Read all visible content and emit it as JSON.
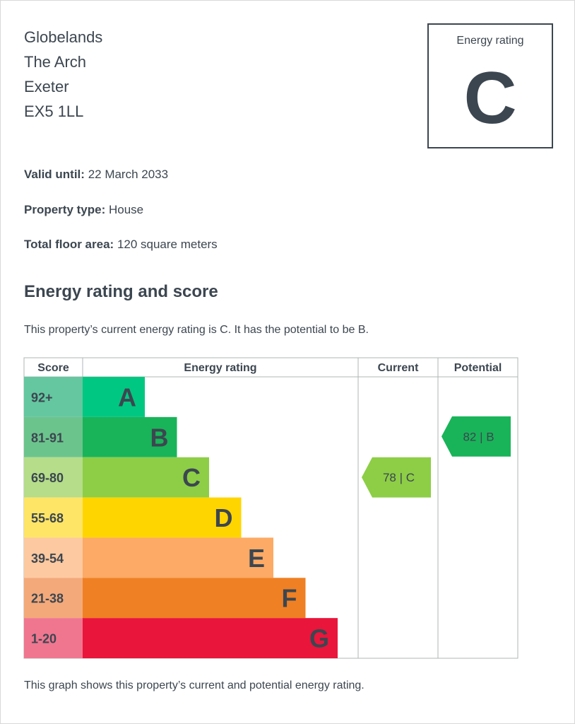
{
  "address": {
    "line1": "Globelands",
    "line2": "The Arch",
    "line3": "Exeter",
    "postcode": "EX5 1LL"
  },
  "rating_box": {
    "label": "Energy rating",
    "letter": "C"
  },
  "details": {
    "valid_until_label": "Valid until:",
    "valid_until_value": "22 March 2033",
    "property_type_label": "Property type:",
    "property_type_value": "House",
    "floor_area_label": "Total floor area:",
    "floor_area_value": "120 square meters"
  },
  "section_title": "Energy rating and score",
  "summary": "This property’s current energy rating is C. It has the potential to be B.",
  "footer_note": "This graph shows this property’s current and potential energy rating.",
  "chart_data": {
    "type": "bar",
    "headers": [
      "Score",
      "Energy rating",
      "Current",
      "Potential"
    ],
    "bands": [
      {
        "score": "92+",
        "letter": "A",
        "color": "#00c781",
        "score_bg": "#64c7a0"
      },
      {
        "score": "81-91",
        "letter": "B",
        "color": "#19b459",
        "score_bg": "#6cc48d"
      },
      {
        "score": "69-80",
        "letter": "C",
        "color": "#8dce46",
        "score_bg": "#b5dd8a"
      },
      {
        "score": "55-68",
        "letter": "D",
        "color": "#ffd500",
        "score_bg": "#ffe566"
      },
      {
        "score": "39-54",
        "letter": "E",
        "color": "#fcaa65",
        "score_bg": "#fdc9a0"
      },
      {
        "score": "21-38",
        "letter": "F",
        "color": "#ef8023",
        "score_bg": "#f4a97a"
      },
      {
        "score": "1-20",
        "letter": "G",
        "color": "#e9153b",
        "score_bg": "#f07690"
      }
    ],
    "current": {
      "score": 78,
      "letter": "C",
      "label": "78 | C",
      "color": "#8dce46"
    },
    "potential": {
      "score": 82,
      "letter": "B",
      "label": "82 | B",
      "color": "#19b459"
    }
  }
}
